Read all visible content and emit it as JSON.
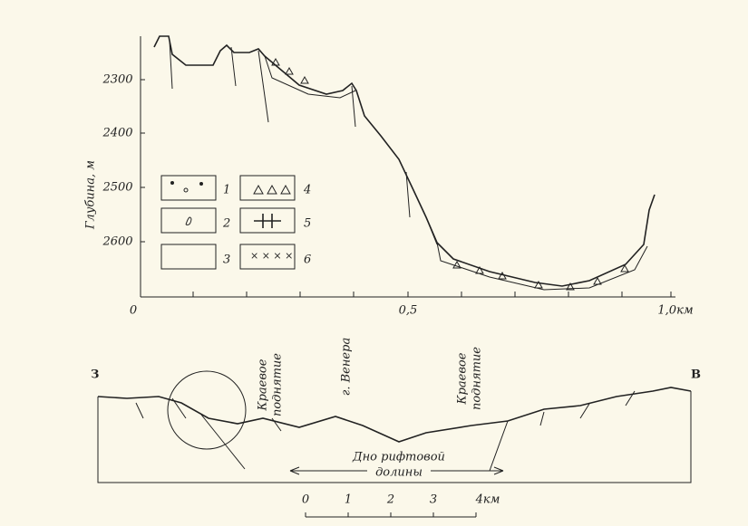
{
  "top_profile": {
    "y_axis_label": "Глубина, м",
    "y_ticks": [
      "2300",
      "2400",
      "2500",
      "2600"
    ],
    "x_ticks": [
      "0",
      "0,5",
      "1,0км"
    ],
    "legend": [
      "1",
      "2",
      "3",
      "4",
      "5",
      "6"
    ]
  },
  "bottom_section": {
    "west": "З",
    "east": "В",
    "left_rise": [
      "Краевое",
      "поднятие"
    ],
    "mount": "г. Венера",
    "right_rise": [
      "Краевое",
      "поднятие"
    ],
    "rift_floor": [
      "Дно рифтовой",
      "долины"
    ],
    "scale": [
      "0",
      "1",
      "2",
      "3",
      "4км"
    ]
  }
}
